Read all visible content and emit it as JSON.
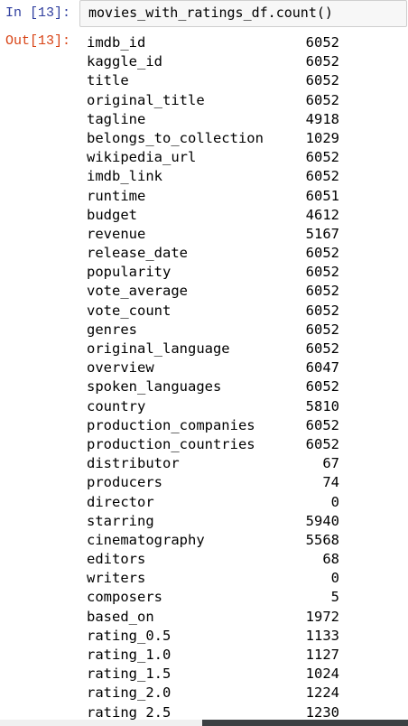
{
  "input_cell": {
    "prompt": "In [13]:",
    "code": "movies_with_ratings_df.count()"
  },
  "output_cell": {
    "prompt": "Out[13]:",
    "rows": [
      {
        "name": "imdb_id",
        "count": "6052"
      },
      {
        "name": "kaggle_id",
        "count": "6052"
      },
      {
        "name": "title",
        "count": "6052"
      },
      {
        "name": "original_title",
        "count": "6052"
      },
      {
        "name": "tagline",
        "count": "4918"
      },
      {
        "name": "belongs_to_collection",
        "count": "1029"
      },
      {
        "name": "wikipedia_url",
        "count": "6052"
      },
      {
        "name": "imdb_link",
        "count": "6052"
      },
      {
        "name": "runtime",
        "count": "6051"
      },
      {
        "name": "budget",
        "count": "4612"
      },
      {
        "name": "revenue",
        "count": "5167"
      },
      {
        "name": "release_date",
        "count": "6052"
      },
      {
        "name": "popularity",
        "count": "6052"
      },
      {
        "name": "vote_average",
        "count": "6052"
      },
      {
        "name": "vote_count",
        "count": "6052"
      },
      {
        "name": "genres",
        "count": "6052"
      },
      {
        "name": "original_language",
        "count": "6052"
      },
      {
        "name": "overview",
        "count": "6047"
      },
      {
        "name": "spoken_languages",
        "count": "6052"
      },
      {
        "name": "country",
        "count": "5810"
      },
      {
        "name": "production_companies",
        "count": "6052"
      },
      {
        "name": "production_countries",
        "count": "6052"
      },
      {
        "name": "distributor",
        "count": "67"
      },
      {
        "name": "producers",
        "count": "74"
      },
      {
        "name": "director",
        "count": "0"
      },
      {
        "name": "starring",
        "count": "5940"
      },
      {
        "name": "cinematography",
        "count": "5568"
      },
      {
        "name": "editors",
        "count": "68"
      },
      {
        "name": "writers",
        "count": "0"
      },
      {
        "name": "composers",
        "count": "5"
      },
      {
        "name": "based_on",
        "count": "1972"
      },
      {
        "name": "rating_0.5",
        "count": "1133"
      },
      {
        "name": "rating_1.0",
        "count": "1127"
      },
      {
        "name": "rating_1.5",
        "count": "1024"
      },
      {
        "name": "rating_2.0",
        "count": "1224"
      },
      {
        "name": "rating_2.5",
        "count": "1230"
      }
    ]
  }
}
